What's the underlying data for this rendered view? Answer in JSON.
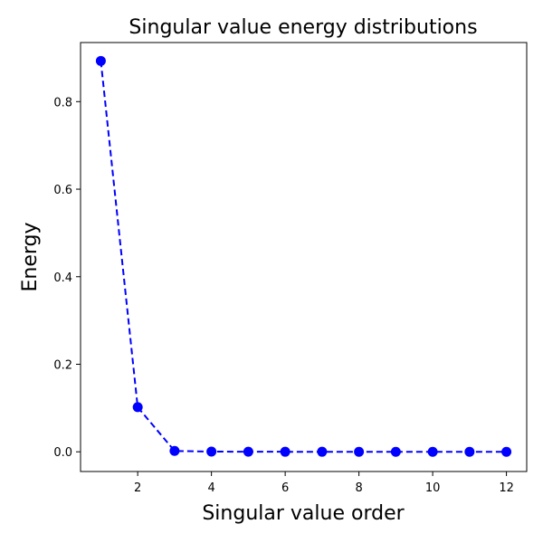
{
  "chart_data": {
    "type": "line",
    "title": "Singular value energy distributions",
    "xlabel": "Singular value order",
    "ylabel": "Energy",
    "xlim": [
      0.45,
      12.55
    ],
    "ylim": [
      -0.045,
      0.935
    ],
    "xticks": [
      2,
      4,
      6,
      8,
      10,
      12
    ],
    "yticks": [
      0.0,
      0.2,
      0.4,
      0.6,
      0.8
    ],
    "xtick_labels": [
      "2",
      "4",
      "6",
      "8",
      "10",
      "12"
    ],
    "ytick_labels": [
      "0.0",
      "0.2",
      "0.4",
      "0.6",
      "0.8"
    ],
    "grid": false,
    "series": [
      {
        "x": [
          1,
          2,
          3,
          4,
          5,
          6,
          7,
          8,
          9,
          10,
          11,
          12
        ],
        "values": [
          0.893,
          0.102,
          0.002,
          0.0005,
          0.0002,
          0.0001,
          0.0001,
          0.0,
          0.0,
          0.0,
          0.0,
          0.0
        ],
        "color": "#0000ff",
        "linestyle": "dashed",
        "marker": "circle"
      }
    ]
  }
}
